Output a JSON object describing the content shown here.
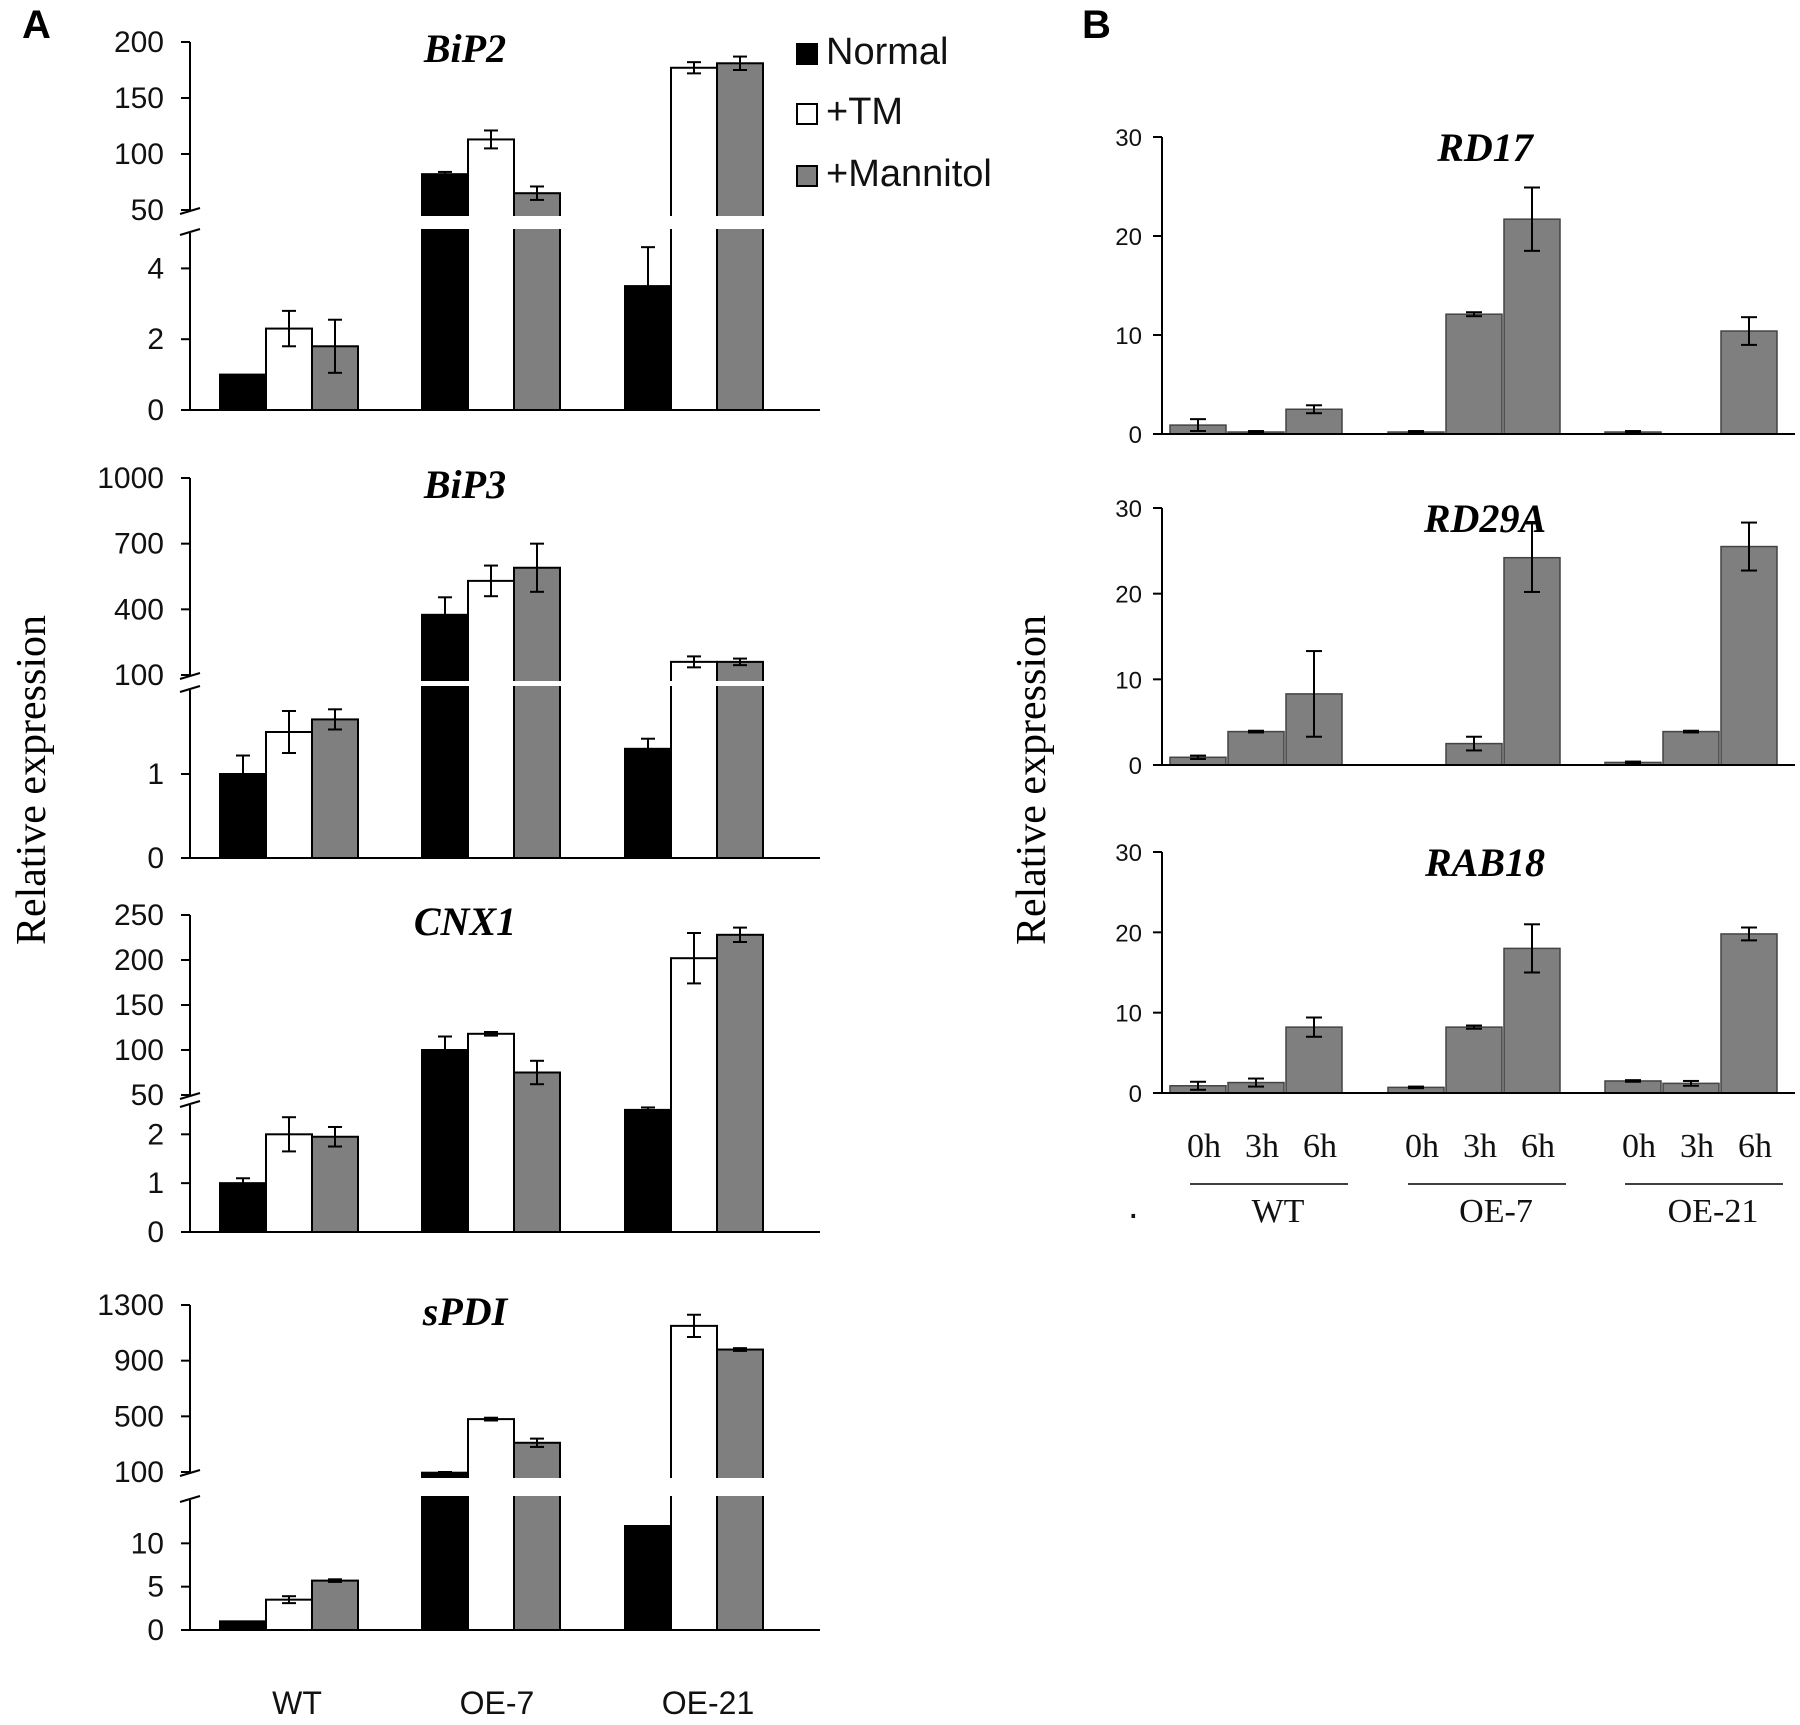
{
  "panels": {
    "a_label": "A",
    "b_label": "B"
  },
  "y_axis_title": "Relative expression",
  "legend": [
    {
      "label": "Normal",
      "color": "#000000"
    },
    {
      "label": "+TM",
      "color": "#ffffff"
    },
    {
      "label": "+Mannitol",
      "color": "#7f7f7f"
    }
  ],
  "panel_b_stray_mark": ".",
  "chart_data": [
    {
      "type": "bar",
      "panel": "A",
      "title": "BiP2",
      "categories": [
        "WT",
        "OE-7",
        "OE-21"
      ],
      "axis_break": true,
      "lower_ylim": [
        0,
        5
      ],
      "lower_ticks": [
        "0",
        "2",
        "4"
      ],
      "upper_ylim": [
        50,
        200
      ],
      "upper_ticks": [
        "50",
        "100",
        "150",
        "200"
      ],
      "series": [
        {
          "name": "Normal",
          "values": [
            1.0,
            82,
            3.5
          ],
          "errors": [
            0,
            2,
            1.1
          ]
        },
        {
          "name": "+TM",
          "values": [
            2.3,
            113,
            177
          ],
          "errors": [
            0.5,
            8,
            5
          ]
        },
        {
          "name": "+Mannitol",
          "values": [
            1.8,
            65,
            181
          ],
          "errors": [
            0.75,
            6,
            6
          ]
        }
      ]
    },
    {
      "type": "bar",
      "panel": "A",
      "title": "BiP3",
      "categories": [
        "WT",
        "OE-7",
        "OE-21"
      ],
      "axis_break": true,
      "lower_ylim": [
        0,
        2
      ],
      "lower_ticks": [
        "0",
        "1"
      ],
      "upper_ylim": [
        100,
        1000
      ],
      "upper_ticks": [
        "100",
        "400",
        "700",
        "1000"
      ],
      "series": [
        {
          "name": "Normal",
          "values": [
            1.0,
            375,
            1.3
          ],
          "errors": [
            0.22,
            80,
            0.12
          ]
        },
        {
          "name": "+TM",
          "values": [
            1.5,
            530,
            160
          ],
          "errors": [
            0.25,
            70,
            25
          ]
        },
        {
          "name": "+Mannitol",
          "values": [
            1.65,
            590,
            160
          ],
          "errors": [
            0.12,
            110,
            15
          ]
        }
      ]
    },
    {
      "type": "bar",
      "panel": "A",
      "title": "CNX1",
      "categories": [
        "WT",
        "OE-7",
        "OE-21"
      ],
      "axis_break": true,
      "lower_ylim": [
        0,
        2.6
      ],
      "lower_ticks": [
        "0",
        "1",
        "2"
      ],
      "upper_ylim": [
        50,
        250
      ],
      "upper_ticks": [
        "50",
        "100",
        "150",
        "200",
        "250"
      ],
      "series": [
        {
          "name": "Normal",
          "values": [
            1.0,
            100,
            2.5
          ],
          "errors": [
            0.1,
            15,
            0.05
          ]
        },
        {
          "name": "+TM",
          "values": [
            2.0,
            118,
            202
          ],
          "errors": [
            0.35,
            2,
            28
          ]
        },
        {
          "name": "+Mannitol",
          "values": [
            1.95,
            75,
            228
          ],
          "errors": [
            0.2,
            13,
            8
          ]
        }
      ]
    },
    {
      "type": "bar",
      "panel": "A",
      "title": "sPDI",
      "categories": [
        "WT",
        "OE-7",
        "OE-21"
      ],
      "axis_break": true,
      "lower_ylim": [
        0,
        15
      ],
      "lower_ticks": [
        "0",
        "5",
        "10"
      ],
      "upper_ylim": [
        100,
        1300
      ],
      "upper_ticks": [
        "100",
        "500",
        "900",
        "1300"
      ],
      "series": [
        {
          "name": "Normal",
          "values": [
            1.0,
            95,
            12
          ],
          "errors": [
            0,
            5,
            0
          ]
        },
        {
          "name": "+TM",
          "values": [
            3.5,
            480,
            1150
          ],
          "errors": [
            0.4,
            10,
            80
          ]
        },
        {
          "name": "+Mannitol",
          "values": [
            5.7,
            310,
            980
          ],
          "errors": [
            0.15,
            30,
            10
          ]
        }
      ]
    },
    {
      "type": "bar",
      "panel": "B",
      "title": "RD17",
      "categories": [
        "WT",
        "OE-7",
        "OE-21"
      ],
      "timepoints": [
        "0h",
        "3h",
        "6h"
      ],
      "ylim": [
        0,
        30
      ],
      "ticks": [
        "0",
        "10",
        "20",
        "30"
      ],
      "values": [
        [
          0.9,
          0.2,
          2.5
        ],
        [
          0.2,
          12.1,
          21.7
        ],
        [
          0.2,
          0,
          10.4
        ]
      ],
      "errors": [
        [
          0.6,
          0.1,
          0.4
        ],
        [
          0.1,
          0.2,
          3.2
        ],
        [
          0.1,
          0,
          1.4
        ]
      ]
    },
    {
      "type": "bar",
      "panel": "B",
      "title": "RD29A",
      "categories": [
        "WT",
        "OE-7",
        "OE-21"
      ],
      "timepoints": [
        "0h",
        "3h",
        "6h"
      ],
      "ylim": [
        0,
        30
      ],
      "ticks": [
        "0",
        "10",
        "20",
        "30"
      ],
      "values": [
        [
          0.9,
          3.9,
          8.3
        ],
        [
          0,
          2.5,
          24.2
        ],
        [
          0.3,
          3.9,
          25.5
        ]
      ],
      "errors": [
        [
          0.2,
          0.1,
          5
        ],
        [
          0,
          0.8,
          4
        ],
        [
          0.1,
          0.1,
          2.8
        ]
      ]
    },
    {
      "type": "bar",
      "panel": "B",
      "title": "RAB18",
      "categories": [
        "WT",
        "OE-7",
        "OE-21"
      ],
      "timepoints": [
        "0h",
        "3h",
        "6h"
      ],
      "ylim": [
        0,
        30
      ],
      "ticks": [
        "0",
        "10",
        "20",
        "30"
      ],
      "values": [
        [
          0.9,
          1.3,
          8.2
        ],
        [
          0.7,
          8.2,
          18
        ],
        [
          1.5,
          1.2,
          19.8
        ]
      ],
      "errors": [
        [
          0.5,
          0.5,
          1.2
        ],
        [
          0.1,
          0.2,
          3
        ],
        [
          0.1,
          0.3,
          0.8
        ]
      ]
    }
  ]
}
